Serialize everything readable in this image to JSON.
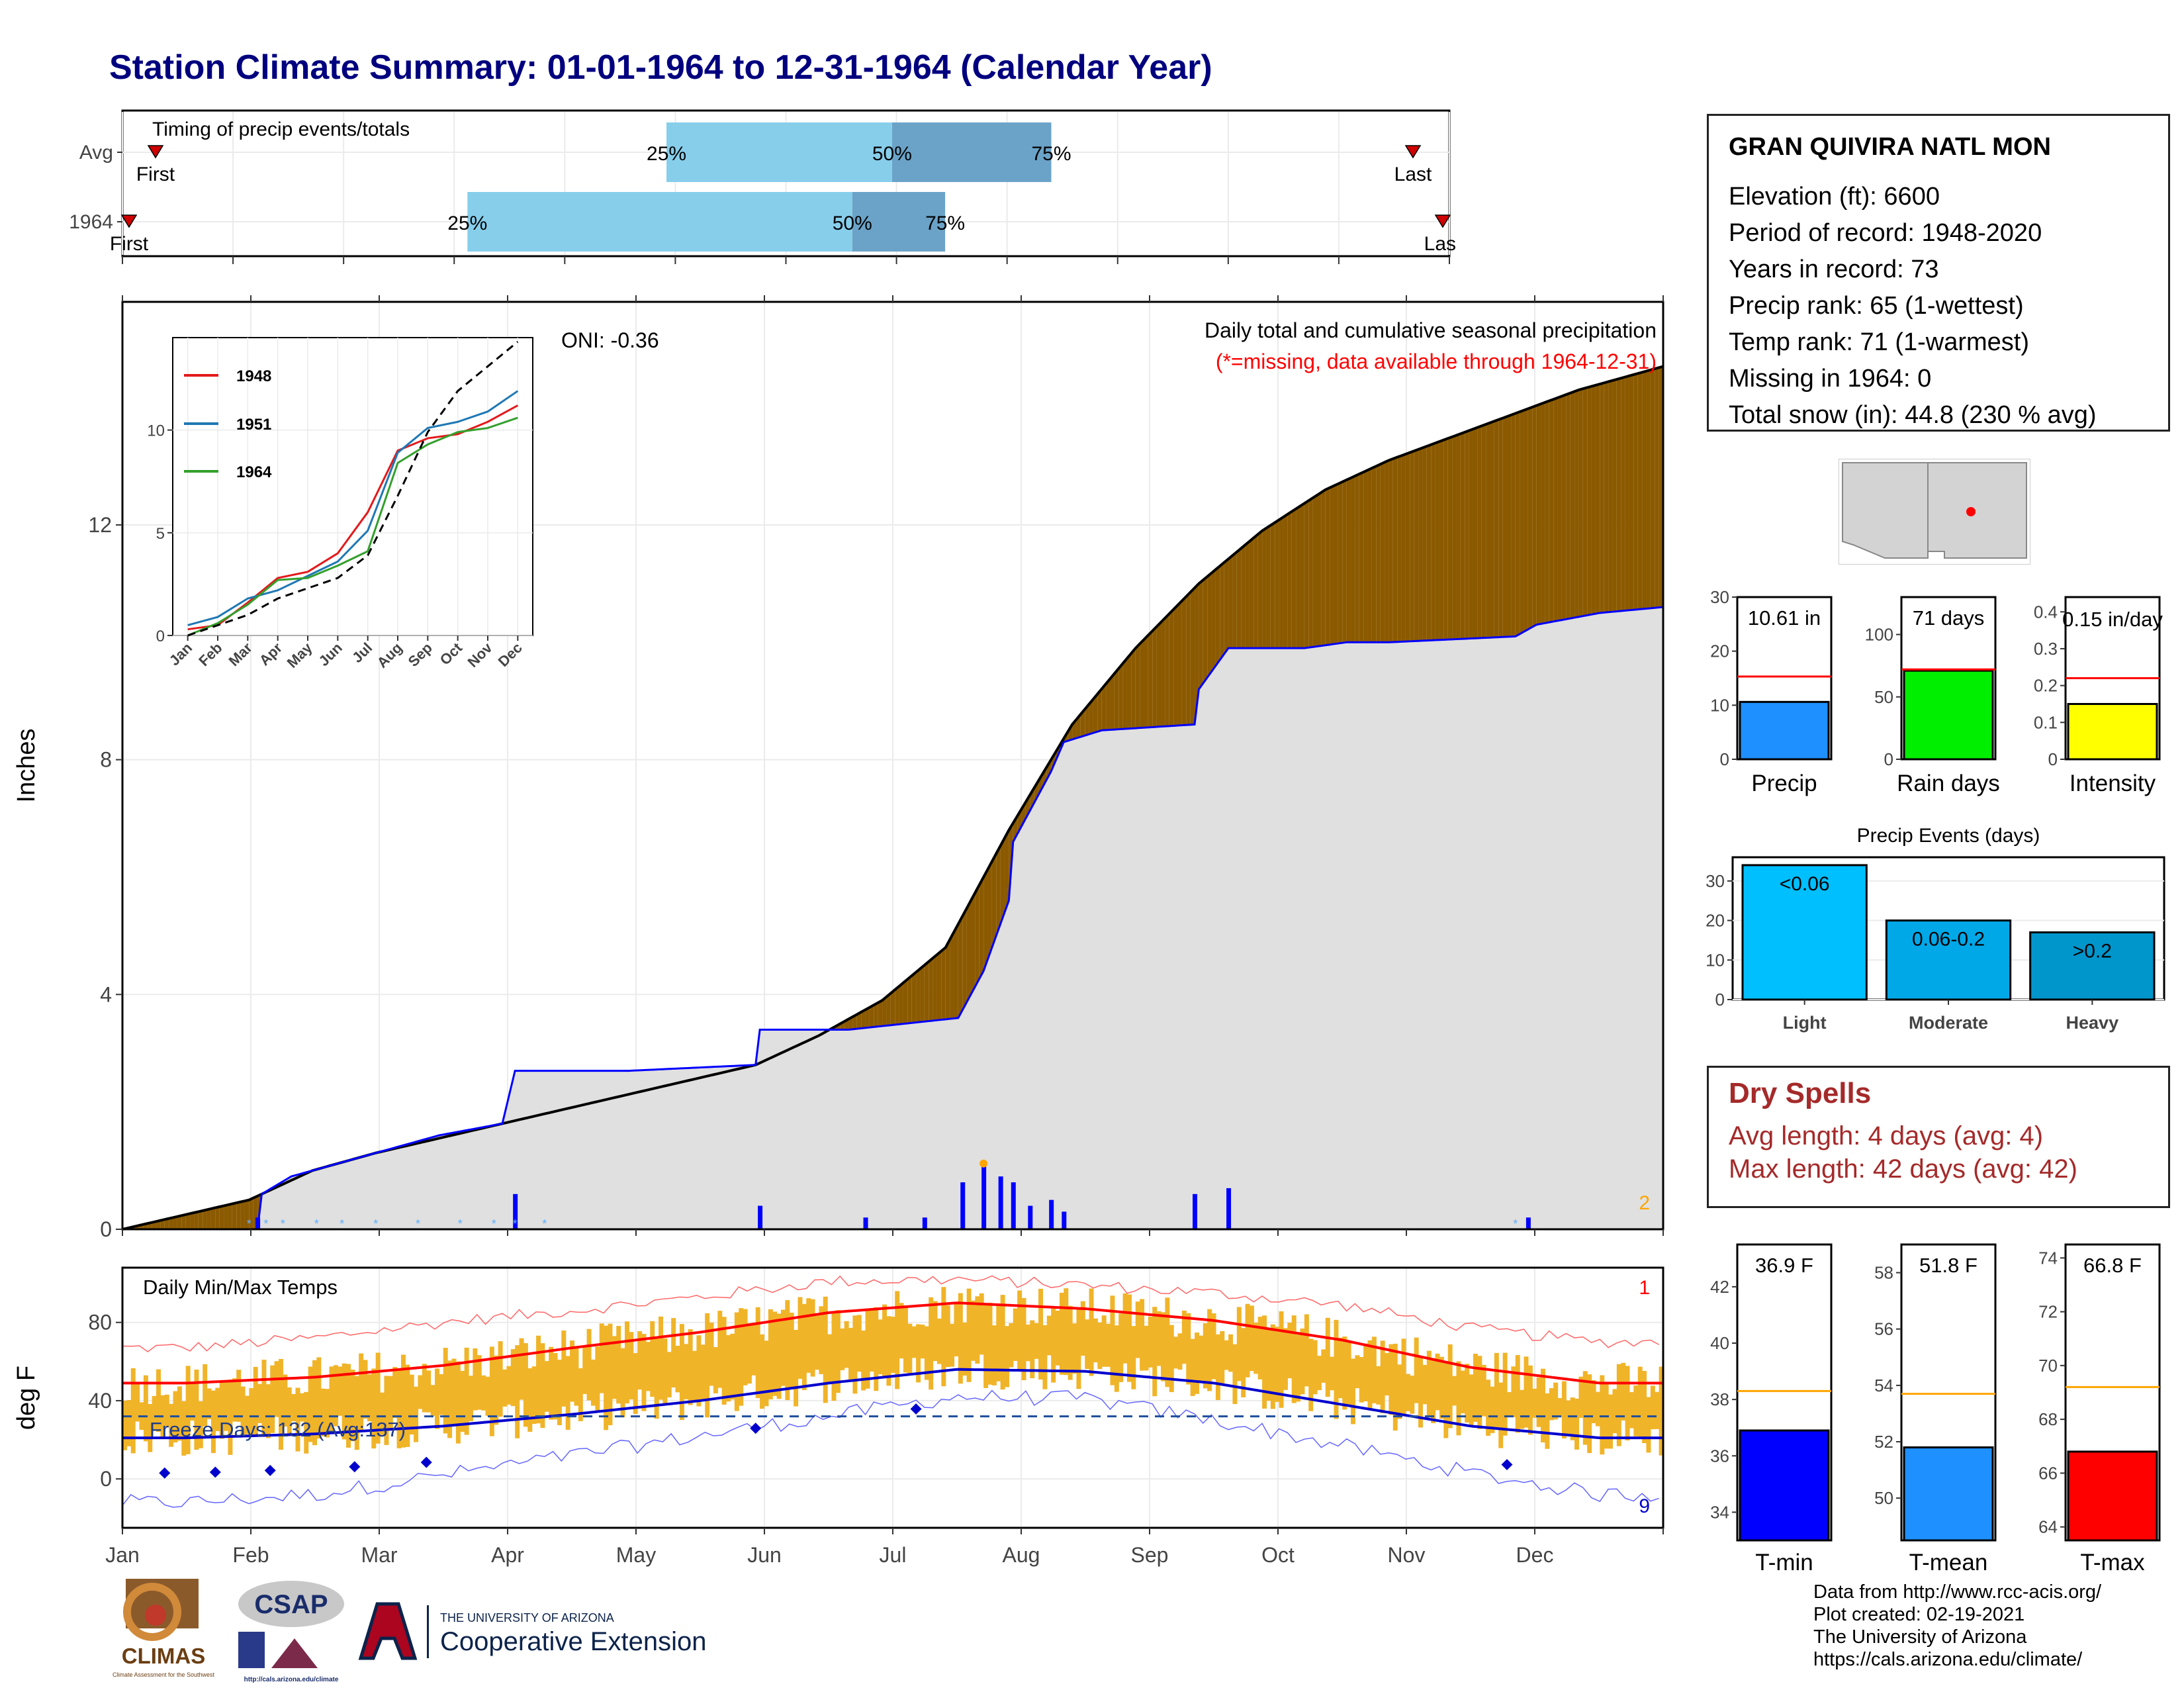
{
  "page": {
    "title": "Station Climate Summary: 01-01-1964 to 12-31-1964 (Calendar Year)"
  },
  "station": {
    "name": "GRAN QUIVIRA NATL MON",
    "lines": [
      "Elevation (ft): 6600",
      "Period of record: 1948-2020",
      "Years in record: 73",
      "Precip rank: 65 (1-wettest)",
      "Temp rank: 71 (1-warmest)",
      "Missing in 1964: 0",
      "Total snow (in): 44.8 (230 % avg)"
    ]
  },
  "dry_spells": {
    "title": "Dry Spells",
    "avg_length": "Avg length: 4 days (avg: 4)",
    "max_length": "Max length: 42 days (avg: 42)"
  },
  "credits": {
    "lines": [
      "Data from http://www.rcc-acis.org/",
      "Plot created: 02-19-2021",
      "The University of Arizona",
      "https://cals.arizona.edu/climate/"
    ]
  },
  "logos": {
    "climas": "CLIMAS",
    "climas_sub": "Climate Assessment for the Southwest",
    "csap": "CSAP",
    "csap_url": "http://cals.arizona.edu/climate",
    "ua_small": "THE UNIVERSITY OF ARIZONA",
    "ua_big": "Cooperative Extension"
  },
  "colors": {
    "title": "#00007f",
    "cum_brown": "#8b5a00",
    "cum_green": "#008000",
    "cum_grey": "#e0e0e0",
    "line_blue": "#0000ff",
    "temp_bar": "#f0b429",
    "tmax_line": "#ff0000",
    "tmin_line": "#0000cd",
    "timing_light": "#87ceeb",
    "timing_dark": "#6ba3c8"
  },
  "chart_data": [
    {
      "type": "bar",
      "id": "timing",
      "title": "Timing of precip events/totals",
      "rows": [
        {
          "label": "Avg",
          "first": "First",
          "last": "Last",
          "q25": 0.41,
          "q50": 0.58,
          "q75": 0.7
        },
        {
          "label": "1964",
          "first": "First",
          "last": "Last",
          "q25": 0.26,
          "q50": 0.55,
          "q75": 0.62
        }
      ],
      "quartile_labels": [
        "25%",
        "50%",
        "75%"
      ]
    },
    {
      "type": "area",
      "id": "cumulative_precip",
      "title": "Daily total and cumulative seasonal precipitation",
      "subtitle": "(*=missing, data available through 1964-12-31)",
      "oni": "ONI: -0.36",
      "ylabel": "Inches",
      "ylim": [
        0,
        15.8
      ],
      "yticks": [
        0,
        4,
        8,
        12
      ],
      "months": [
        "Jan",
        "Feb",
        "Mar",
        "Apr",
        "May",
        "Jun",
        "Jul",
        "Aug",
        "Sep",
        "Oct",
        "Nov",
        "Dec"
      ],
      "corner_label": "2",
      "avg_cumulative": {
        "days": [
          0,
          15,
          30,
          45,
          60,
          75,
          90,
          105,
          120,
          135,
          150,
          165,
          180,
          195,
          210,
          225,
          240,
          255,
          270,
          285,
          300,
          315,
          330,
          345,
          365
        ],
        "values": [
          0,
          0.25,
          0.5,
          1.0,
          1.3,
          1.55,
          1.8,
          2.05,
          2.3,
          2.55,
          2.8,
          3.3,
          3.9,
          4.8,
          6.8,
          8.6,
          9.9,
          11.0,
          11.9,
          12.6,
          13.1,
          13.5,
          13.9,
          14.3,
          14.7
        ]
      },
      "year_cumulative": {
        "days": [
          0,
          32,
          33,
          40,
          50,
          60,
          75,
          90,
          93,
          120,
          150,
          151,
          172,
          198,
          204,
          210,
          211,
          220,
          223,
          232,
          254,
          255,
          262,
          280,
          290,
          300,
          330,
          335,
          350,
          365
        ],
        "values": [
          0,
          0,
          0.6,
          0.9,
          1.1,
          1.3,
          1.6,
          1.8,
          2.7,
          2.7,
          2.8,
          3.4,
          3.4,
          3.6,
          4.4,
          5.6,
          6.6,
          7.8,
          8.3,
          8.5,
          8.6,
          9.2,
          9.9,
          9.9,
          10.0,
          10.0,
          10.1,
          10.3,
          10.5,
          10.6
        ]
      },
      "daily_bars": [
        {
          "day": 32,
          "value": 0.2
        },
        {
          "day": 93,
          "value": 0.6
        },
        {
          "day": 151,
          "value": 0.4
        },
        {
          "day": 176,
          "value": 0.2
        },
        {
          "day": 190,
          "value": 0.2
        },
        {
          "day": 199,
          "value": 0.8
        },
        {
          "day": 204,
          "value": 1.1
        },
        {
          "day": 208,
          "value": 0.9
        },
        {
          "day": 211,
          "value": 0.8
        },
        {
          "day": 215,
          "value": 0.4
        },
        {
          "day": 220,
          "value": 0.5
        },
        {
          "day": 223,
          "value": 0.3
        },
        {
          "day": 254,
          "value": 0.6
        },
        {
          "day": 262,
          "value": 0.7
        },
        {
          "day": 333,
          "value": 0.2
        }
      ]
    },
    {
      "type": "line",
      "id": "inset",
      "xlabels": [
        "Jan",
        "Feb",
        "Mar",
        "Apr",
        "May",
        "Jun",
        "Jul",
        "Aug",
        "Sep",
        "Oct",
        "Nov",
        "Dec"
      ],
      "yticks": [
        0,
        5,
        10
      ],
      "ylim": [
        0,
        14.5
      ],
      "series": [
        {
          "name": "1948",
          "color": "#e31a1c",
          "values": [
            0.3,
            0.5,
            1.6,
            2.8,
            3.1,
            4.0,
            6.0,
            9.0,
            9.6,
            9.8,
            10.4,
            11.2
          ]
        },
        {
          "name": "1951",
          "color": "#1f78b4",
          "values": [
            0.5,
            0.9,
            1.8,
            2.2,
            2.9,
            3.6,
            5.1,
            8.9,
            10.1,
            10.4,
            10.9,
            11.9
          ]
        },
        {
          "name": "1964",
          "color": "#33a02c",
          "values": [
            0.0,
            0.6,
            1.5,
            2.7,
            2.8,
            3.4,
            4.1,
            8.4,
            9.3,
            9.9,
            10.1,
            10.6
          ]
        },
        {
          "name": "avg",
          "color": "#000000",
          "values": [
            0.0,
            0.5,
            1.0,
            1.8,
            2.3,
            2.8,
            3.9,
            6.8,
            9.9,
            11.9,
            13.1,
            14.3
          ]
        }
      ]
    },
    {
      "type": "bar",
      "id": "temps",
      "title": "Daily Min/Max Temps",
      "ylabel": "deg F",
      "ylim": [
        -25,
        108
      ],
      "yticks": [
        0,
        40,
        80
      ],
      "freeze_label": "Freeze Days: 132 (Avg:137)",
      "freeze_line": 32,
      "record_high_count": "1",
      "record_low_count": "9",
      "months": [
        "Jan",
        "Feb",
        "Mar",
        "Apr",
        "May",
        "Jun",
        "Jul",
        "Aug",
        "Sep",
        "Oct",
        "Nov",
        "Dec"
      ],
      "monthly_avg_max": [
        49,
        52,
        58,
        67,
        75,
        85,
        90,
        87,
        81,
        71,
        57,
        49
      ],
      "monthly_avg_min": [
        21,
        23,
        27,
        33,
        40,
        49,
        56,
        55,
        49,
        38,
        27,
        21
      ],
      "monthly_record_max": [
        67,
        72,
        80,
        86,
        93,
        101,
        102,
        99,
        95,
        89,
        77,
        70
      ],
      "monthly_record_min": [
        -12,
        -8,
        2,
        12,
        22,
        32,
        42,
        41,
        30,
        17,
        3,
        -8
      ]
    },
    {
      "type": "bar",
      "id": "small_precip",
      "bars": [
        {
          "label": "Precip",
          "value": 10.61,
          "text": "10.61 in",
          "avg": 15.3,
          "ylim": [
            0,
            30
          ],
          "yticks": [
            0,
            10,
            20,
            30
          ],
          "color": "#1e90ff"
        },
        {
          "label": "Rain days",
          "value": 71,
          "text": "71 days",
          "avg": 72,
          "ylim": [
            0,
            130
          ],
          "yticks": [
            0,
            50,
            100
          ],
          "color": "#00ee00"
        },
        {
          "label": "Intensity",
          "value": 0.15,
          "text": "0.15 in/day",
          "avg": 0.22,
          "ylim": [
            0,
            0.44
          ],
          "yticks": [
            0.0,
            0.1,
            0.2,
            0.3,
            0.4
          ],
          "color": "#ffff00"
        }
      ]
    },
    {
      "type": "bar",
      "id": "precip_events",
      "title": "Precip Events (days)",
      "categories": [
        "Light",
        "Moderate",
        "Heavy"
      ],
      "bar_labels": [
        "<0.06",
        "0.06-0.2",
        ">0.2"
      ],
      "values": [
        34,
        20,
        17
      ],
      "ylim": [
        0,
        36
      ],
      "yticks": [
        0,
        10,
        20,
        30
      ],
      "colors": [
        "#00bfff",
        "#00a8e8",
        "#0096cc"
      ]
    },
    {
      "type": "bar",
      "id": "small_temp",
      "bars": [
        {
          "label": "T-min",
          "value": 36.9,
          "text": "36.9 F",
          "avg": 38.3,
          "ylim": [
            33.0,
            43.5
          ],
          "yticks": [
            34,
            36,
            38,
            40,
            42
          ],
          "color": "#0000ff"
        },
        {
          "label": "T-mean",
          "value": 51.8,
          "text": "51.8 F",
          "avg": 53.7,
          "ylim": [
            48.5,
            59.0
          ],
          "yticks": [
            50,
            52,
            54,
            56,
            58
          ],
          "color": "#1e90ff"
        },
        {
          "label": "T-max",
          "value": 66.8,
          "text": "66.8 F",
          "avg": 69.2,
          "ylim": [
            63.5,
            74.5
          ],
          "yticks": [
            64,
            66,
            68,
            70,
            72,
            74
          ],
          "color": "#ff0000"
        }
      ]
    }
  ]
}
